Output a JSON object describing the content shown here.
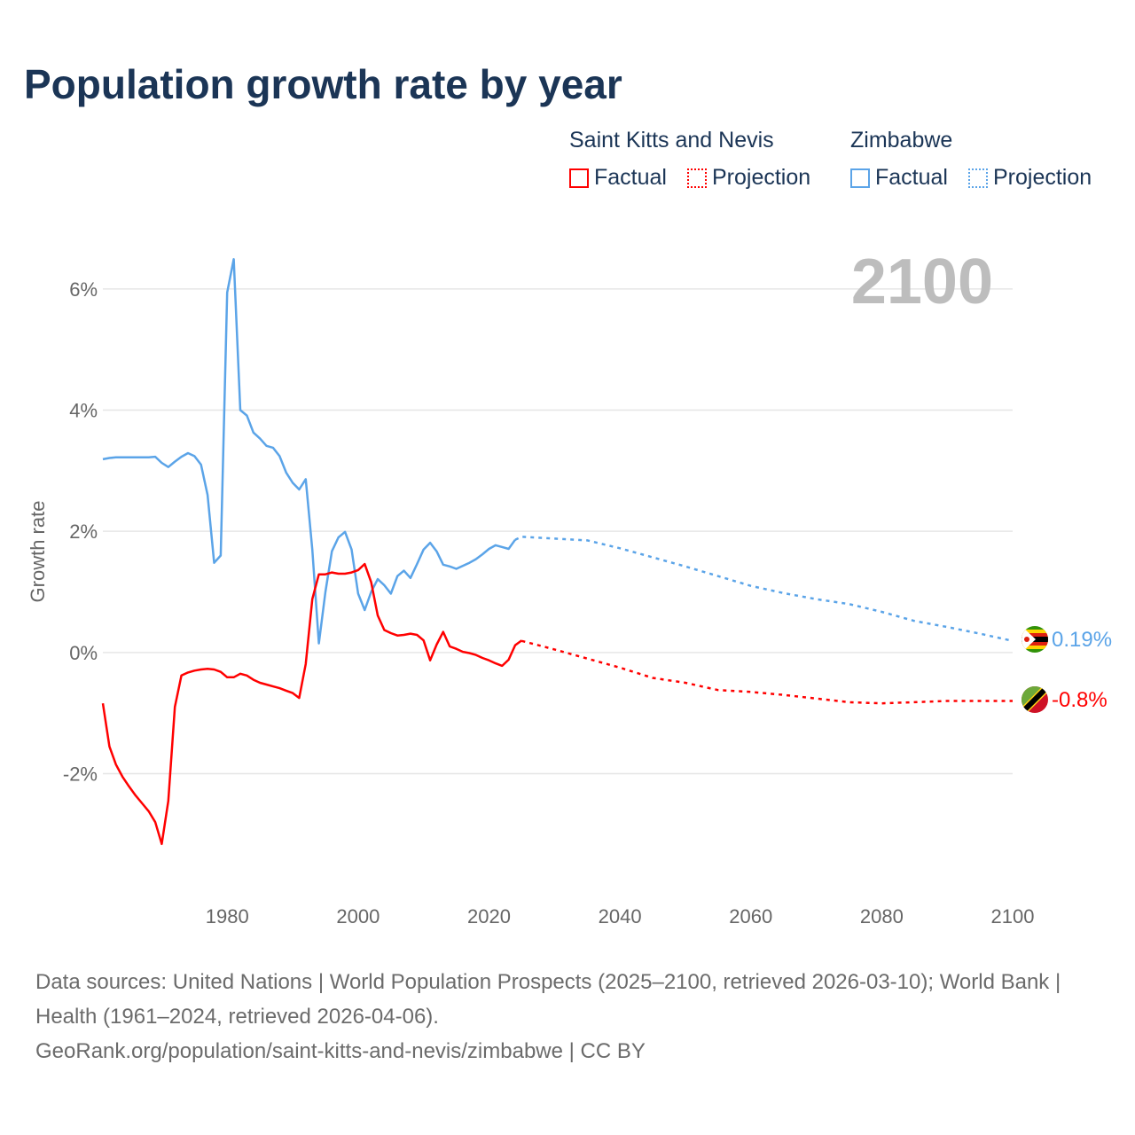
{
  "title": "Population growth rate by year",
  "legend": {
    "groups": [
      {
        "name": "Saint Kitts and Nevis",
        "color": "#ff0000",
        "factual": "Factual",
        "projection": "Projection"
      },
      {
        "name": "Zimbabwe",
        "color": "#5ba4e8",
        "factual": "Factual",
        "projection": "Projection"
      }
    ]
  },
  "year_display": "2100",
  "end_labels": {
    "zimbabwe": "0.19%",
    "skn": "-0.8%"
  },
  "sources": {
    "line1": "Data sources: United Nations | World Population Prospects (2025–2100, retrieved 2026-03-10); World Bank | Health (1961–2024, retrieved 2026-04-06).",
    "line2": "GeoRank.org/population/saint-kitts-and-nevis/zimbabwe | CC BY"
  },
  "chart_data": {
    "type": "line",
    "title": "Population growth rate by year",
    "xlabel": "",
    "ylabel": "Growth rate",
    "xlim": [
      1961,
      2100
    ],
    "ylim": [
      -3.5,
      6.7
    ],
    "xticks": [
      1980,
      2000,
      2020,
      2040,
      2060,
      2080,
      2100
    ],
    "xtick_labels": [
      "1980",
      "2000",
      "2020",
      "2040",
      "2060",
      "2080",
      "2100"
    ],
    "yticks": [
      -2,
      0,
      2,
      4,
      6
    ],
    "ytick_labels": [
      "-2%",
      "0%",
      "2%",
      "4%",
      "6%"
    ],
    "grid": true,
    "series": [
      {
        "name": "Zimbabwe Factual",
        "color": "#5ba4e8",
        "style": "solid",
        "x_start": 1961,
        "values": [
          3.19,
          3.21,
          3.22,
          3.22,
          3.22,
          3.22,
          3.22,
          3.22,
          3.23,
          3.13,
          3.06,
          3.15,
          3.23,
          3.29,
          3.24,
          3.1,
          2.6,
          1.48,
          1.6,
          5.94,
          6.49,
          4.0,
          3.91,
          3.63,
          3.53,
          3.41,
          3.38,
          3.24,
          2.97,
          2.8,
          2.69,
          2.86,
          1.7,
          0.15,
          1.0,
          1.67,
          1.9,
          1.99,
          1.7,
          0.97,
          0.7,
          1.0,
          1.21,
          1.11,
          0.97,
          1.26,
          1.35,
          1.23,
          1.46,
          1.7,
          1.81,
          1.67,
          1.45,
          1.42,
          1.38,
          1.43,
          1.48,
          1.54,
          1.62,
          1.71,
          1.77,
          1.74,
          1.71,
          1.86
        ]
      },
      {
        "name": "Zimbabwe Projection",
        "color": "#5ba4e8",
        "style": "dotted",
        "x": [
          2024,
          2025,
          2030,
          2035,
          2040,
          2045,
          2050,
          2055,
          2060,
          2065,
          2070,
          2075,
          2080,
          2085,
          2090,
          2095,
          2100
        ],
        "values": [
          1.86,
          1.91,
          1.88,
          1.85,
          1.72,
          1.57,
          1.42,
          1.26,
          1.1,
          0.98,
          0.88,
          0.8,
          0.67,
          0.52,
          0.42,
          0.31,
          0.19
        ]
      },
      {
        "name": "Saint Kitts and Nevis Factual",
        "color": "#ff0000",
        "style": "solid",
        "x_start": 1961,
        "values": [
          -0.84,
          -1.55,
          -1.85,
          -2.05,
          -2.21,
          -2.36,
          -2.49,
          -2.62,
          -2.8,
          -3.16,
          -2.45,
          -0.9,
          -0.38,
          -0.33,
          -0.3,
          -0.28,
          -0.27,
          -0.28,
          -0.32,
          -0.41,
          -0.41,
          -0.35,
          -0.38,
          -0.45,
          -0.5,
          -0.53,
          -0.56,
          -0.59,
          -0.63,
          -0.67,
          -0.75,
          -0.19,
          0.88,
          1.29,
          1.29,
          1.32,
          1.3,
          1.3,
          1.32,
          1.36,
          1.46,
          1.16,
          0.61,
          0.37,
          0.32,
          0.28,
          0.29,
          0.31,
          0.29,
          0.2,
          -0.13,
          0.13,
          0.34,
          0.1,
          0.06,
          0.01,
          -0.01,
          -0.04,
          -0.09,
          -0.13,
          -0.18,
          -0.22,
          -0.12,
          0.12,
          0.2
        ]
      },
      {
        "name": "Saint Kitts and Nevis Projection",
        "color": "#ff0000",
        "style": "dotted",
        "x": [
          2025,
          2030,
          2035,
          2040,
          2045,
          2050,
          2055,
          2060,
          2065,
          2070,
          2075,
          2080,
          2085,
          2090,
          2095,
          2100
        ],
        "values": [
          0.19,
          0.05,
          -0.1,
          -0.25,
          -0.42,
          -0.5,
          -0.62,
          -0.65,
          -0.7,
          -0.76,
          -0.82,
          -0.84,
          -0.82,
          -0.8,
          -0.8,
          -0.8
        ]
      }
    ]
  }
}
